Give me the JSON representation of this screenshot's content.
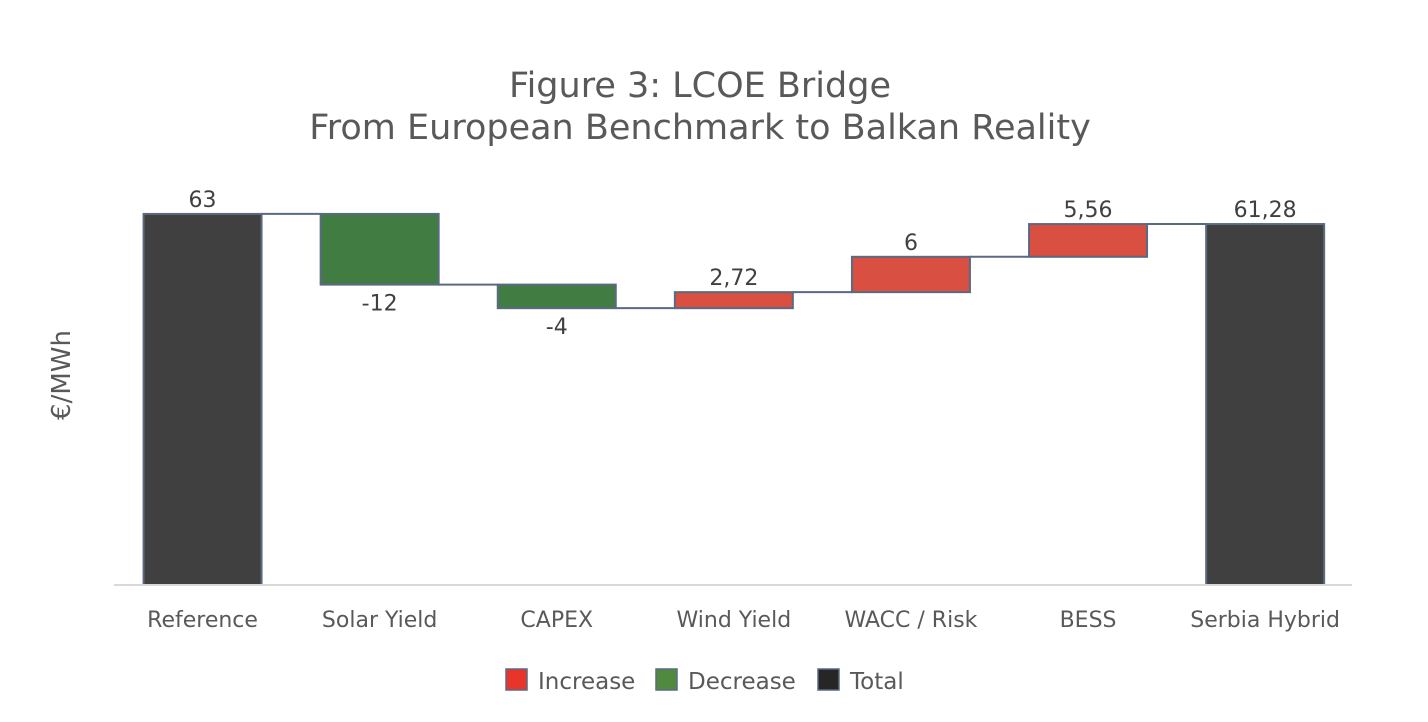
{
  "chart_data": {
    "type": "bar",
    "subtype": "waterfall",
    "title": "Figure 3: LCOE Bridge",
    "subtitle": "From European Benchmark to Balkan Reality",
    "ylabel": "€/MWh",
    "xlabel": "",
    "ylim": [
      0,
      65
    ],
    "grid": false,
    "legend_position": "bottom",
    "categories": [
      "Reference",
      "Solar Yield",
      "CAPEX",
      "Wind Yield",
      "WACC / Risk",
      "BESS",
      "Serbia Hybrid"
    ],
    "values": [
      63,
      -12,
      -4,
      2.72,
      6,
      5.56,
      61.28
    ],
    "kinds": [
      "total",
      "decrease",
      "decrease",
      "increase",
      "increase",
      "increase",
      "total"
    ],
    "data_labels": [
      "63",
      "-12",
      "-4",
      "2,72",
      "6",
      "5,56",
      "61,28"
    ],
    "legend": [
      {
        "key": "increase",
        "label": "Increase"
      },
      {
        "key": "decrease",
        "label": "Decrease"
      },
      {
        "key": "total",
        "label": "Total"
      }
    ],
    "colors": {
      "increase": "#d94f41",
      "increase_legend": "#e8342a",
      "decrease": "#417c43",
      "decrease_legend": "#4f8a3e",
      "total": "#404040",
      "total_legend": "#262626",
      "bar_edge": "#5a6a82",
      "axis": "#d9d9d9"
    }
  }
}
